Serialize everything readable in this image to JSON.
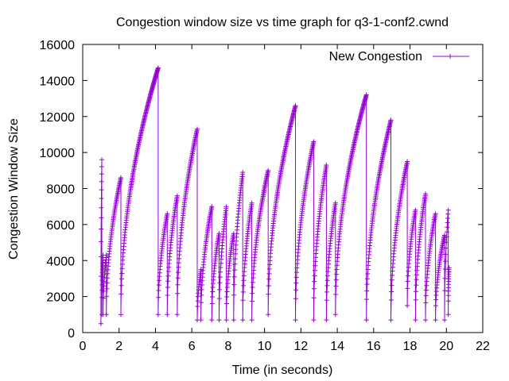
{
  "chart_data": {
    "type": "line",
    "title": "Congestion window size vs time graph for q3-1-conf2.cwnd",
    "xlabel": "Time (in seconds)",
    "ylabel": "Congestion Window Size",
    "xlim": [
      0,
      22
    ],
    "ylim": [
      0,
      16000
    ],
    "xticks": [
      0,
      2,
      4,
      6,
      8,
      10,
      12,
      14,
      16,
      18,
      20,
      22
    ],
    "yticks": [
      0,
      2000,
      4000,
      6000,
      8000,
      10000,
      12000,
      14000,
      16000
    ],
    "grid": false,
    "legend_position": "top-right",
    "marker": "plus",
    "series": [
      {
        "name": "New Congestion",
        "color": "#9400d3",
        "segments": [
          {
            "t_start": 1.0,
            "t_end": 1.05,
            "w_start": 500,
            "w_end": 9600
          },
          {
            "t_start": 1.05,
            "t_end": 1.12,
            "w_start": 1000,
            "w_end": 4300
          },
          {
            "t_start": 1.12,
            "t_end": 1.3,
            "w_start": 1000,
            "w_end": 4300
          },
          {
            "t_start": 1.3,
            "t_end": 2.1,
            "w_start": 1000,
            "w_end": 8600
          },
          {
            "t_start": 2.1,
            "t_end": 4.15,
            "w_start": 1000,
            "w_end": 14700
          },
          {
            "t_start": 4.15,
            "t_end": 4.65,
            "w_start": 1000,
            "w_end": 6600
          },
          {
            "t_start": 4.65,
            "t_end": 5.2,
            "w_start": 1000,
            "w_end": 7600
          },
          {
            "t_start": 5.2,
            "t_end": 6.3,
            "w_start": 1000,
            "w_end": 11300
          },
          {
            "t_start": 6.3,
            "t_end": 6.5,
            "w_start": 700,
            "w_end": 3500
          },
          {
            "t_start": 6.5,
            "t_end": 7.1,
            "w_start": 700,
            "w_end": 7000
          },
          {
            "t_start": 7.1,
            "t_end": 7.5,
            "w_start": 700,
            "w_end": 5500
          },
          {
            "t_start": 7.5,
            "t_end": 7.9,
            "w_start": 700,
            "w_end": 7000
          },
          {
            "t_start": 7.9,
            "t_end": 8.3,
            "w_start": 700,
            "w_end": 5500
          },
          {
            "t_start": 8.3,
            "t_end": 8.8,
            "w_start": 700,
            "w_end": 8900
          },
          {
            "t_start": 8.8,
            "t_end": 9.3,
            "w_start": 700,
            "w_end": 7200
          },
          {
            "t_start": 9.3,
            "t_end": 10.2,
            "w_start": 700,
            "w_end": 9000
          },
          {
            "t_start": 10.2,
            "t_end": 11.7,
            "w_start": 1000,
            "w_end": 12600
          },
          {
            "t_start": 11.7,
            "t_end": 12.7,
            "w_start": 700,
            "w_end": 10600
          },
          {
            "t_start": 12.7,
            "t_end": 13.4,
            "w_start": 700,
            "w_end": 9300
          },
          {
            "t_start": 13.4,
            "t_end": 13.9,
            "w_start": 700,
            "w_end": 7200
          },
          {
            "t_start": 13.9,
            "t_end": 15.6,
            "w_start": 1000,
            "w_end": 13200
          },
          {
            "t_start": 15.6,
            "t_end": 16.95,
            "w_start": 700,
            "w_end": 11800
          },
          {
            "t_start": 16.95,
            "t_end": 17.85,
            "w_start": 700,
            "w_end": 9500
          },
          {
            "t_start": 17.85,
            "t_end": 18.3,
            "w_start": 1500,
            "w_end": 6800
          },
          {
            "t_start": 18.3,
            "t_end": 18.85,
            "w_start": 700,
            "w_end": 7700
          },
          {
            "t_start": 18.85,
            "t_end": 19.4,
            "w_start": 700,
            "w_end": 6600
          },
          {
            "t_start": 19.4,
            "t_end": 19.9,
            "w_start": 700,
            "w_end": 5400
          },
          {
            "t_start": 19.9,
            "t_end": 20.1,
            "w_start": 700,
            "w_end": 6800
          },
          {
            "t_start": 20.1,
            "t_end": 20.15,
            "w_start": 1000,
            "w_end": 3600
          }
        ]
      }
    ]
  }
}
